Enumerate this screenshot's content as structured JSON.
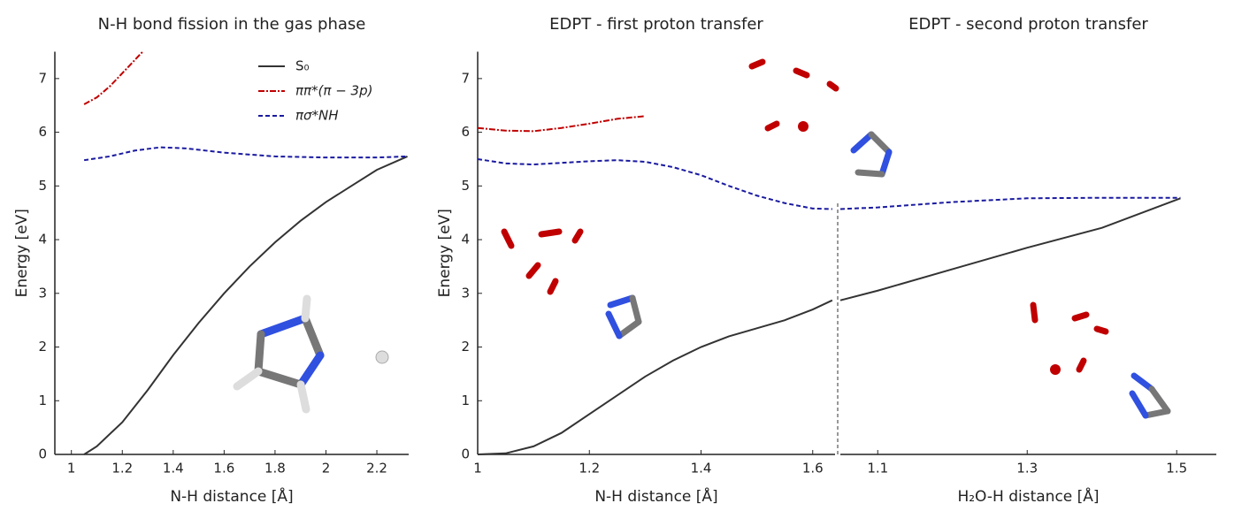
{
  "chart_data": [
    {
      "type": "line",
      "title": "N-H bond fission in the gas phase",
      "xlabel": "N-H distance [Å]",
      "ylabel": "Energy [eV]",
      "xlim": [
        0.935,
        2.325
      ],
      "ylim": [
        0,
        7.5
      ],
      "xticks": [
        1,
        1.2,
        1.4,
        1.6,
        1.8,
        2,
        2.2
      ],
      "yticks": [
        0,
        1,
        2,
        3,
        4,
        5,
        6,
        7
      ],
      "legend": "upper right",
      "series": [
        {
          "name": "S₀",
          "color": "#333333",
          "style": "solid",
          "x": [
            1.05,
            1.1,
            1.2,
            1.3,
            1.4,
            1.5,
            1.6,
            1.7,
            1.8,
            1.9,
            2.0,
            2.1,
            2.2,
            2.32
          ],
          "values": [
            0,
            0.15,
            0.6,
            1.2,
            1.85,
            2.45,
            3.0,
            3.5,
            3.95,
            4.35,
            4.7,
            5.0,
            5.3,
            5.55
          ]
        },
        {
          "name": "ππ*(π − 3p)",
          "color": "#c00000",
          "style": "dashdot",
          "x": [
            1.05,
            1.1,
            1.15,
            1.2,
            1.25,
            1.28
          ],
          "values": [
            6.52,
            6.65,
            6.85,
            7.1,
            7.35,
            7.5
          ]
        },
        {
          "name": "πσ*NH",
          "color": "#1a1aa0",
          "style": "dashed",
          "x": [
            1.05,
            1.15,
            1.25,
            1.35,
            1.45,
            1.6,
            1.8,
            2.0,
            2.2,
            2.32
          ],
          "values": [
            5.48,
            5.55,
            5.66,
            5.72,
            5.7,
            5.62,
            5.55,
            5.53,
            5.53,
            5.55
          ]
        }
      ]
    },
    {
      "type": "line",
      "title": "EDPT - first proton transfer",
      "xlabel": "N-H distance [Å]",
      "ylabel": "Energy [eV]",
      "xlim": [
        1,
        1.64
      ],
      "ylim": [
        0,
        7.5
      ],
      "xticks": [
        1,
        1.2,
        1.4,
        1.6
      ],
      "yticks": [
        0,
        1,
        2,
        3,
        4,
        5,
        6,
        7
      ],
      "series": [
        {
          "color": "#333333",
          "style": "solid",
          "x": [
            1.0,
            1.05,
            1.1,
            1.15,
            1.2,
            1.25,
            1.3,
            1.35,
            1.4,
            1.45,
            1.5,
            1.55,
            1.6,
            1.635
          ],
          "values": [
            0,
            0.02,
            0.15,
            0.4,
            0.75,
            1.1,
            1.45,
            1.75,
            2.0,
            2.2,
            2.35,
            2.5,
            2.7,
            2.87
          ]
        },
        {
          "color": "#c00000",
          "style": "dashdot",
          "x": [
            1.0,
            1.05,
            1.1,
            1.15,
            1.2,
            1.25,
            1.3
          ],
          "values": [
            6.08,
            6.03,
            6.02,
            6.08,
            6.16,
            6.25,
            6.3
          ]
        },
        {
          "color": "#1a1aa0",
          "style": "dashed",
          "x": [
            1.0,
            1.05,
            1.1,
            1.15,
            1.2,
            1.25,
            1.3,
            1.35,
            1.4,
            1.45,
            1.5,
            1.55,
            1.6,
            1.635
          ],
          "values": [
            5.5,
            5.42,
            5.4,
            5.43,
            5.46,
            5.48,
            5.45,
            5.35,
            5.2,
            5.0,
            4.82,
            4.68,
            4.58,
            4.57
          ]
        }
      ]
    },
    {
      "type": "line",
      "title": "EDPT - second proton transfer",
      "xlabel": "H₂O-H distance [Å]",
      "xlim": [
        1.05,
        1.553
      ],
      "ylim": [
        0,
        7.5
      ],
      "xticks": [
        1.1,
        1.3,
        1.5
      ],
      "series": [
        {
          "color": "#333333",
          "style": "solid",
          "x": [
            1.05,
            1.1,
            1.2,
            1.3,
            1.4,
            1.505
          ],
          "values": [
            2.87,
            3.05,
            3.45,
            3.85,
            4.22,
            4.77
          ]
        },
        {
          "color": "#1a1aa0",
          "style": "dashed",
          "x": [
            1.05,
            1.1,
            1.2,
            1.3,
            1.4,
            1.505
          ],
          "values": [
            4.57,
            4.6,
            4.7,
            4.77,
            4.78,
            4.78
          ]
        }
      ]
    }
  ]
}
